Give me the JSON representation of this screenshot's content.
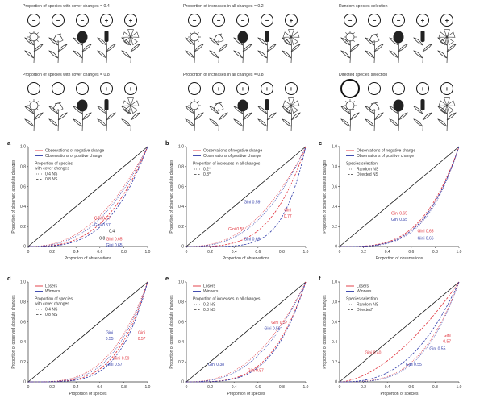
{
  "scenarios": [
    {
      "caption": "Proportion of species with cover changes = 0.4",
      "signs": [
        "−",
        "−",
        "−",
        "+",
        "+"
      ]
    },
    {
      "caption": "Proportion of increases in all changes = 0.2",
      "signs": [
        "−",
        "−",
        "−",
        "−",
        "+"
      ]
    },
    {
      "caption": "Random species selection",
      "signs": [
        "−",
        "−",
        "−",
        "+",
        "+"
      ]
    },
    {
      "caption": "Proportion of species with cover changes = 0.8",
      "signs": [
        "−",
        "−",
        "−",
        "+",
        "+"
      ]
    },
    {
      "caption": "Proportion of increases in all changes = 0.8",
      "signs": [
        "−",
        "+",
        "+",
        "+",
        "+"
      ]
    },
    {
      "caption": "Directed species selection",
      "signs": [
        "−",
        "−",
        "−",
        "+",
        "+"
      ]
    }
  ],
  "colors": {
    "red": "#e0303a",
    "blue": "#2e3aa8",
    "black": "#111111",
    "grey": "#555555"
  },
  "chart_data": [
    {
      "type": "line",
      "panel": "a",
      "xlabel": "Proportion of observations",
      "ylabel": "Proportion of observed absolute changes",
      "xlim": [
        0,
        1
      ],
      "ylim": [
        0,
        1
      ],
      "xticks": [
        "0",
        "0.2",
        "0.4",
        "0.6",
        "0.8",
        "1.0"
      ],
      "yticks": [
        "0",
        "0.2",
        "0.4",
        "0.6",
        "0.8",
        "1.0"
      ],
      "legend_top": [
        {
          "label": "Observations of negative change",
          "color": "red"
        },
        {
          "label": "Observations of positive change",
          "color": "blue"
        }
      ],
      "legend_sub_title": [
        "Proportion of species",
        "with cover changes"
      ],
      "legend_sub": [
        {
          "label": "0.4 NS",
          "style": "dotted"
        },
        {
          "label": "0.8 NS",
          "style": "dashed"
        }
      ],
      "series": [
        {
          "color": "red",
          "style": "dotted",
          "p": 2.3
        },
        {
          "color": "blue",
          "style": "dotted",
          "p": 2.5
        },
        {
          "color": "red",
          "style": "dashed",
          "p": 2.9
        },
        {
          "color": "blue",
          "style": "dashed",
          "p": 3.2
        }
      ],
      "annotations": [
        {
          "text": "Gini 0.57",
          "color": "red",
          "x": 0.62,
          "y": 0.27
        },
        {
          "text": "Gini 0.57",
          "color": "blue",
          "x": 0.62,
          "y": 0.2
        },
        {
          "text": "0.4",
          "color": "black",
          "x": 0.7,
          "y": 0.14
        },
        {
          "text": "0.8",
          "color": "black",
          "x": 0.62,
          "y": 0.07
        },
        {
          "text": "Gini 0.65",
          "color": "red",
          "x": 0.72,
          "y": 0.06
        },
        {
          "text": "Gini 0.65",
          "color": "blue",
          "x": 0.72,
          "y": 0.0
        }
      ]
    },
    {
      "type": "line",
      "panel": "b",
      "xlabel": "Proportion of observations",
      "ylabel": "Proportion of observed absolute changes",
      "xlim": [
        0,
        1
      ],
      "ylim": [
        0,
        1
      ],
      "xticks": [
        "0",
        "0.2",
        "0.4",
        "0.6",
        "0.8",
        "1.0"
      ],
      "yticks": [
        "0",
        "0.2",
        "0.4",
        "0.6",
        "0.8",
        "1.0"
      ],
      "legend_top": [
        {
          "label": "Observations of negative change",
          "color": "red"
        },
        {
          "label": "Observations of positive change",
          "color": "blue"
        }
      ],
      "legend_sub_title": [
        "Proportion of increases in all changes"
      ],
      "legend_sub": [
        {
          "label": "0.2*",
          "style": "dotted"
        },
        {
          "label": "0.8*",
          "style": "dashed"
        }
      ],
      "series": [
        {
          "color": "red",
          "style": "dotted",
          "p": 2.4
        },
        {
          "color": "blue",
          "style": "dotted",
          "p": 2.6
        },
        {
          "color": "red",
          "style": "dashed",
          "p": 3.6
        },
        {
          "color": "blue",
          "style": "dashed",
          "p": 5.5
        }
      ],
      "annotations": [
        {
          "text": "Gini 0.59",
          "color": "blue",
          "x": 0.55,
          "y": 0.43
        },
        {
          "text": "Gini",
          "color": "red",
          "x": 0.85,
          "y": 0.35
        },
        {
          "text": "0.77",
          "color": "red",
          "x": 0.85,
          "y": 0.29
        },
        {
          "text": "Gini 0.58",
          "color": "red",
          "x": 0.42,
          "y": 0.16
        },
        {
          "text": "Gini 0.69",
          "color": "blue",
          "x": 0.55,
          "y": 0.06
        }
      ]
    },
    {
      "type": "line",
      "panel": "c",
      "xlabel": "Proportion of observations",
      "ylabel": "Proportion of observed absolute changes",
      "xlim": [
        0,
        1
      ],
      "ylim": [
        0,
        1
      ],
      "xticks": [
        "0",
        "0.2",
        "0.4",
        "0.6",
        "0.8",
        "1.0"
      ],
      "yticks": [
        "0",
        "0.2",
        "0.4",
        "0.6",
        "0.8",
        "1.0"
      ],
      "legend_top": [
        {
          "label": "Observations of negative change",
          "color": "red"
        },
        {
          "label": "Observations of positive change",
          "color": "blue"
        }
      ],
      "legend_sub_title": [
        "Species selection"
      ],
      "legend_sub": [
        {
          "label": "Random NS",
          "style": "dotted"
        },
        {
          "label": "Directed NS",
          "style": "dashed"
        }
      ],
      "series": [
        {
          "color": "red",
          "style": "dotted",
          "p": 3.6
        },
        {
          "color": "blue",
          "style": "dotted",
          "p": 3.8
        },
        {
          "color": "red",
          "style": "dashed",
          "p": 3.4
        },
        {
          "color": "blue",
          "style": "dashed",
          "p": 3.6
        }
      ],
      "annotations": [
        {
          "text": "Gini 0.65",
          "color": "red",
          "x": 0.5,
          "y": 0.32
        },
        {
          "text": "Gini 0.65",
          "color": "blue",
          "x": 0.5,
          "y": 0.26
        },
        {
          "text": "Gini 0.65",
          "color": "red",
          "x": 0.72,
          "y": 0.14
        },
        {
          "text": "Gini 0.66",
          "color": "blue",
          "x": 0.72,
          "y": 0.07
        }
      ]
    },
    {
      "type": "line",
      "panel": "d",
      "xlabel": "Proportion of species",
      "ylabel": "Proportion of observed absolute changes",
      "xlim": [
        0,
        1
      ],
      "ylim": [
        0,
        1
      ],
      "xticks": [
        "0",
        "0.2",
        "0.4",
        "0.6",
        "0.8",
        "1.0"
      ],
      "yticks": [
        "0",
        "0.2",
        "0.4",
        "0.6",
        "0.8",
        "1.0"
      ],
      "legend_top": [
        {
          "label": "Losers",
          "color": "red"
        },
        {
          "label": "Winners",
          "color": "blue"
        }
      ],
      "legend_sub_title": [
        "Proportion of species",
        "with cover changes"
      ],
      "legend_sub": [
        {
          "label": "0.4 NS",
          "style": "dotted"
        },
        {
          "label": "0.8 NS",
          "style": "dashed"
        }
      ],
      "series": [
        {
          "color": "red",
          "style": "dotted",
          "p": 3.3
        },
        {
          "color": "blue",
          "style": "dotted",
          "p": 3.6
        },
        {
          "color": "red",
          "style": "dashed",
          "p": 4.0
        },
        {
          "color": "blue",
          "style": "dashed",
          "p": 4.4
        }
      ],
      "annotations": [
        {
          "text": "Gini",
          "color": "blue",
          "x": 0.68,
          "y": 0.48
        },
        {
          "text": "0.55",
          "color": "blue",
          "x": 0.68,
          "y": 0.42
        },
        {
          "text": "Gini",
          "color": "red",
          "x": 0.95,
          "y": 0.48
        },
        {
          "text": "0.57",
          "color": "red",
          "x": 0.95,
          "y": 0.42
        },
        {
          "text": "Gini 0.59",
          "color": "red",
          "x": 0.78,
          "y": 0.22
        },
        {
          "text": "Gini 0.57",
          "color": "blue",
          "x": 0.72,
          "y": 0.16
        }
      ]
    },
    {
      "type": "line",
      "panel": "e",
      "xlabel": "Proportion of species",
      "ylabel": "Proportion of observed absolute changes",
      "xlim": [
        0,
        1
      ],
      "ylim": [
        0,
        1
      ],
      "xticks": [
        "0",
        "0.2",
        "0.4",
        "0.6",
        "0.8",
        "1.0"
      ],
      "yticks": [
        "0",
        "0.2",
        "0.4",
        "0.6",
        "0.8",
        "1.0"
      ],
      "legend_top": [
        {
          "label": "Losers",
          "color": "red"
        },
        {
          "label": "Winners",
          "color": "blue"
        }
      ],
      "legend_sub_title": [
        "Proportion of increases in all changes"
      ],
      "legend_sub": [
        {
          "label": "0.2 NS",
          "style": "dotted"
        },
        {
          "label": "0.8 NS",
          "style": "dashed"
        }
      ],
      "series": [
        {
          "color": "red",
          "style": "dotted",
          "p": 2.4
        },
        {
          "color": "blue",
          "style": "dotted",
          "p": 2.6
        },
        {
          "color": "red",
          "style": "dashed",
          "p": 3.6
        },
        {
          "color": "blue",
          "style": "dashed",
          "p": 3.8
        }
      ],
      "annotations": [
        {
          "text": "Gini 0.57",
          "color": "red",
          "x": 0.78,
          "y": 0.58
        },
        {
          "text": "Gini 0.56",
          "color": "blue",
          "x": 0.72,
          "y": 0.52
        },
        {
          "text": "Gini 0.38",
          "color": "blue",
          "x": 0.25,
          "y": 0.16
        },
        {
          "text": "Gini 0.57",
          "color": "red",
          "x": 0.58,
          "y": 0.1
        }
      ]
    },
    {
      "type": "line",
      "panel": "f",
      "xlabel": "Proportion of species",
      "ylabel": "Proportion of observed absolute changes",
      "xlim": [
        0,
        1
      ],
      "ylim": [
        0,
        1
      ],
      "xticks": [
        "0",
        "0.2",
        "0.4",
        "0.6",
        "0.8",
        "1.0"
      ],
      "yticks": [
        "0",
        "0.2",
        "0.4",
        "0.6",
        "0.8",
        "1.0"
      ],
      "legend_top": [
        {
          "label": "Losers",
          "color": "red"
        },
        {
          "label": "Winners",
          "color": "blue"
        }
      ],
      "legend_sub_title": [
        "Species selection"
      ],
      "legend_sub": [
        {
          "label": "Random NS",
          "style": "dotted"
        },
        {
          "label": "Directed*",
          "style": "dashed"
        }
      ],
      "series": [
        {
          "color": "red",
          "style": "dotted",
          "p": 3.2
        },
        {
          "color": "blue",
          "style": "dotted",
          "p": 3.4
        },
        {
          "color": "red",
          "style": "dashed",
          "p": 1.7
        },
        {
          "color": "blue",
          "style": "dashed",
          "p": 2.6
        }
      ],
      "annotations": [
        {
          "text": "Gini",
          "color": "red",
          "x": 0.9,
          "y": 0.45
        },
        {
          "text": "0.57",
          "color": "red",
          "x": 0.9,
          "y": 0.39
        },
        {
          "text": "Gini 0.55",
          "color": "blue",
          "x": 0.82,
          "y": 0.32
        },
        {
          "text": "Gini 0.40",
          "color": "red",
          "x": 0.28,
          "y": 0.28
        },
        {
          "text": "Gini 0.55",
          "color": "blue",
          "x": 0.62,
          "y": 0.16
        }
      ]
    }
  ]
}
